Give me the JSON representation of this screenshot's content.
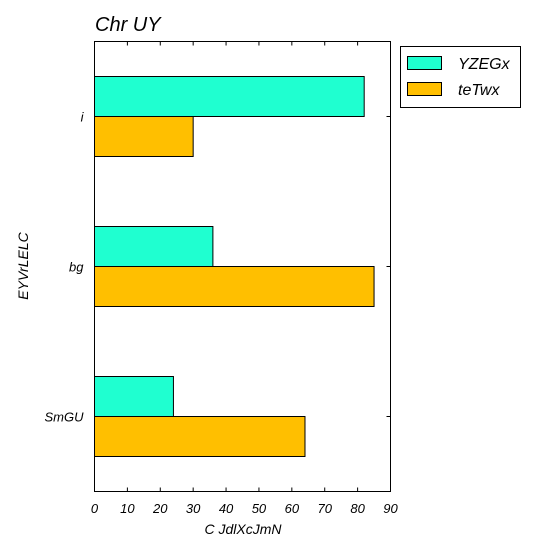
{
  "chart_data": {
    "type": "bar",
    "orientation": "horizontal",
    "title": "Chr UY",
    "xlabel": "C JdlXcJmN",
    "ylabel": "EYVrLELC",
    "categories": [
      "i",
      "bg",
      "SmGU"
    ],
    "series": [
      {
        "name": "YZEGx",
        "color": "#1fffd0",
        "values": [
          82,
          36,
          24
        ]
      },
      {
        "name": "teTwx",
        "color": "#ffbf00",
        "values": [
          30,
          85,
          64
        ]
      }
    ],
    "xlim": [
      0,
      90
    ],
    "xticks": [
      "0",
      "10",
      "20",
      "30",
      "40",
      "50",
      "60",
      "70",
      "80",
      "90"
    ],
    "grid": false,
    "legend_position": "top-right, outside plot"
  }
}
